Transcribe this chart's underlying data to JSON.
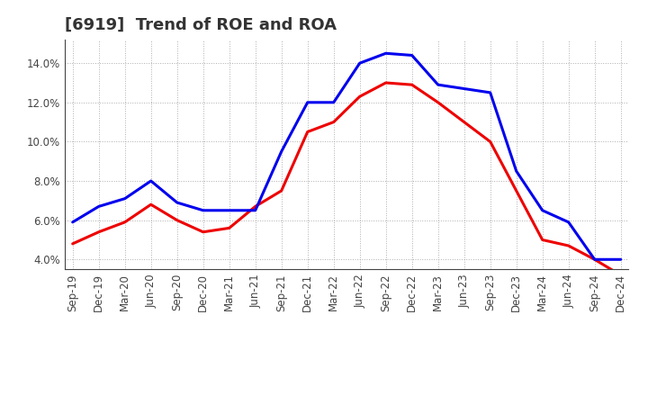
{
  "title": "[6919]  Trend of ROE and ROA",
  "x_labels": [
    "Sep-19",
    "Dec-19",
    "Mar-20",
    "Jun-20",
    "Sep-20",
    "Dec-20",
    "Mar-21",
    "Jun-21",
    "Sep-21",
    "Dec-21",
    "Mar-22",
    "Jun-22",
    "Sep-22",
    "Dec-22",
    "Mar-23",
    "Jun-23",
    "Sep-23",
    "Dec-23",
    "Mar-24",
    "Jun-24",
    "Sep-24",
    "Dec-24"
  ],
  "roe": [
    4.8,
    5.4,
    5.9,
    6.8,
    6.0,
    5.4,
    5.6,
    6.7,
    7.5,
    10.5,
    11.0,
    12.3,
    13.0,
    12.9,
    12.0,
    11.0,
    10.0,
    7.5,
    5.0,
    4.7,
    4.0,
    3.2
  ],
  "roa": [
    5.9,
    6.7,
    7.1,
    8.0,
    6.9,
    6.5,
    6.5,
    6.5,
    9.5,
    12.0,
    12.0,
    14.0,
    14.5,
    14.4,
    12.9,
    12.7,
    12.5,
    8.5,
    6.5,
    5.9,
    4.0,
    4.0
  ],
  "roe_color": "#ee0000",
  "roa_color": "#0000ee",
  "background_color": "#ffffff",
  "grid_color": "#999999",
  "ylim": [
    3.5,
    15.2
  ],
  "yticks": [
    4.0,
    6.0,
    8.0,
    10.0,
    12.0,
    14.0
  ],
  "title_fontsize": 13,
  "legend_fontsize": 10,
  "tick_fontsize": 8.5,
  "line_width": 2.2
}
